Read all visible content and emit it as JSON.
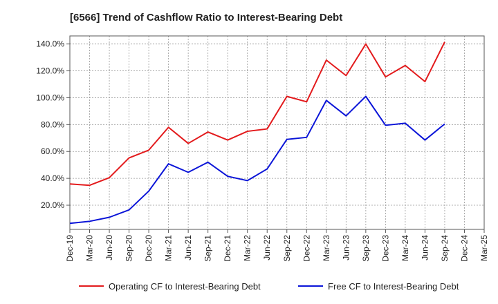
{
  "chart_data": {
    "type": "line",
    "title": "[6566]  Trend of Cashflow Ratio to Interest-Bearing Debt",
    "xlabel": "",
    "ylabel": "",
    "x_ticks": [
      "Dec-19",
      "Mar-20",
      "Jun-20",
      "Sep-20",
      "Dec-20",
      "Mar-21",
      "Jun-21",
      "Sep-21",
      "Dec-21",
      "Mar-22",
      "Jun-22",
      "Sep-22",
      "Dec-22",
      "Mar-23",
      "Jun-23",
      "Sep-23",
      "Dec-23",
      "Mar-24",
      "Jun-24",
      "Sep-24",
      "Dec-24",
      "Mar-25"
    ],
    "y_ticks": [
      "20.0%",
      "40.0%",
      "60.0%",
      "80.0%",
      "100.0%",
      "120.0%",
      "140.0%"
    ],
    "ylim": [
      2,
      146
    ],
    "grid": true,
    "legend_position": "bottom",
    "series": [
      {
        "name": "Operating CF to Interest-Bearing Debt",
        "color": "#e31a1c",
        "values": [
          35.8,
          34.8,
          40.5,
          55.2,
          61.0,
          78.0,
          66.0,
          74.5,
          68.5,
          75.0,
          76.8,
          101.0,
          97.0,
          128.0,
          116.5,
          140.0,
          115.5,
          124.0,
          112.0,
          141.5
        ]
      },
      {
        "name": "Free CF to Interest-Bearing Debt",
        "color": "#0a14d8",
        "values": [
          6.5,
          8.0,
          11.0,
          16.5,
          30.5,
          50.8,
          44.5,
          52.0,
          41.5,
          38.3,
          47.0,
          69.0,
          70.5,
          98.0,
          86.5,
          101.0,
          79.5,
          81.0,
          68.5,
          80.5
        ]
      }
    ]
  }
}
